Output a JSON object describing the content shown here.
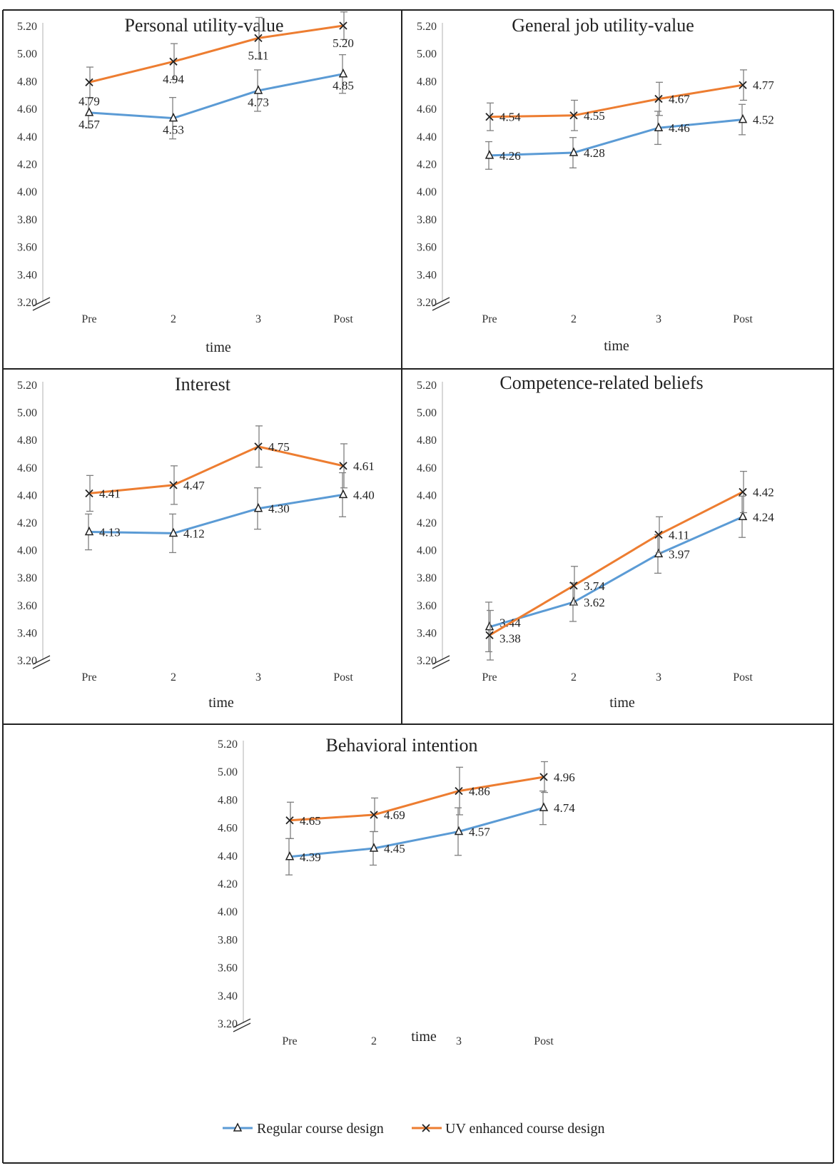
{
  "legend": {
    "regular": "Regular course design",
    "enhanced": "UV enhanced course design"
  },
  "colors": {
    "regular": "#5B9BD5",
    "enhanced": "#ED7D31",
    "errorbar": "#7f7f7f",
    "border": "#222222",
    "axis": "#bfbfbf"
  },
  "chart_data": [
    {
      "type": "line",
      "title": "Personal utility-value",
      "xlabel": "time",
      "categories": [
        "Pre",
        "2",
        "3",
        "Post"
      ],
      "yticks": [
        "3.20",
        "3.40",
        "3.60",
        "3.80",
        "4.00",
        "4.20",
        "4.40",
        "4.60",
        "4.80",
        "5.00",
        "5.20"
      ],
      "ylim": [
        3.2,
        5.2
      ],
      "series": [
        {
          "name": "Regular course design",
          "key": "regular",
          "values": [
            4.57,
            4.53,
            4.73,
            4.85
          ],
          "labels": [
            "4.57",
            "4.53",
            "4.73",
            "4.85"
          ],
          "error": [
            0.11,
            0.15,
            0.15,
            0.14
          ]
        },
        {
          "name": "UV enhanced course design",
          "key": "enhanced",
          "values": [
            4.79,
            4.94,
            5.11,
            5.2
          ],
          "labels": [
            "4.79",
            "4.94",
            "5.11",
            "5.20"
          ],
          "error": [
            0.11,
            0.13,
            0.15,
            0.1
          ]
        }
      ]
    },
    {
      "type": "line",
      "title": "General job utility-value",
      "xlabel": "time",
      "categories": [
        "Pre",
        "2",
        "3",
        "Post"
      ],
      "yticks": [
        "3.20",
        "3.40",
        "3.60",
        "3.80",
        "4.00",
        "4.20",
        "4.40",
        "4.60",
        "4.80",
        "5.00",
        "5.20"
      ],
      "ylim": [
        3.2,
        5.2
      ],
      "series": [
        {
          "name": "Regular course design",
          "key": "regular",
          "values": [
            4.26,
            4.28,
            4.46,
            4.52
          ],
          "labels": [
            "4.26",
            "4.28",
            "4.46",
            "4.52"
          ],
          "error": [
            0.1,
            0.11,
            0.12,
            0.11
          ]
        },
        {
          "name": "UV enhanced course design",
          "key": "enhanced",
          "values": [
            4.54,
            4.55,
            4.67,
            4.77
          ],
          "labels": [
            "4.54",
            "4.55",
            "4.67",
            "4.77"
          ],
          "error": [
            0.1,
            0.11,
            0.12,
            0.11
          ]
        }
      ]
    },
    {
      "type": "line",
      "title": "Interest",
      "xlabel": "time",
      "categories": [
        "Pre",
        "2",
        "3",
        "Post"
      ],
      "yticks": [
        "3.20",
        "3.40",
        "3.60",
        "3.80",
        "4.00",
        "4.20",
        "4.40",
        "4.60",
        "4.80",
        "5.00",
        "5.20"
      ],
      "ylim": [
        3.2,
        5.2
      ],
      "series": [
        {
          "name": "Regular course design",
          "key": "regular",
          "values": [
            4.13,
            4.12,
            4.3,
            4.4
          ],
          "labels": [
            "4.13",
            "4.12",
            "4.30",
            "4.40"
          ],
          "error": [
            0.13,
            0.14,
            0.15,
            0.16
          ]
        },
        {
          "name": "UV enhanced course design",
          "key": "enhanced",
          "values": [
            4.41,
            4.47,
            4.75,
            4.61
          ],
          "labels": [
            "4.41",
            "4.47",
            "4.75",
            "4.61"
          ],
          "error": [
            0.13,
            0.14,
            0.15,
            0.16
          ]
        }
      ]
    },
    {
      "type": "line",
      "title": "Competence-related beliefs",
      "xlabel": "time",
      "categories": [
        "Pre",
        "2",
        "3",
        "Post"
      ],
      "yticks": [
        "3.20",
        "3.40",
        "3.60",
        "3.80",
        "4.00",
        "4.20",
        "4.40",
        "4.60",
        "4.80",
        "5.00",
        "5.20"
      ],
      "ylim": [
        3.2,
        5.2
      ],
      "series": [
        {
          "name": "Regular course design",
          "key": "regular",
          "values": [
            3.44,
            3.62,
            3.97,
            4.24
          ],
          "labels": [
            "3.44",
            "3.62",
            "3.97",
            "4.24"
          ],
          "error": [
            0.18,
            0.14,
            0.14,
            0.15
          ]
        },
        {
          "name": "UV enhanced course design",
          "key": "enhanced",
          "values": [
            3.38,
            3.74,
            4.11,
            4.42
          ],
          "labels": [
            "3.38",
            "3.74",
            "4.11",
            "4.42"
          ],
          "error": [
            0.18,
            0.14,
            0.13,
            0.15
          ]
        }
      ]
    },
    {
      "type": "line",
      "title": "Behavioral intention",
      "xlabel": "time",
      "categories": [
        "Pre",
        "2",
        "3",
        "Post"
      ],
      "yticks": [
        "3.20",
        "3.40",
        "3.60",
        "3.80",
        "4.00",
        "4.20",
        "4.40",
        "4.60",
        "4.80",
        "5.00",
        "5.20"
      ],
      "ylim": [
        3.2,
        5.2
      ],
      "series": [
        {
          "name": "Regular course design",
          "key": "regular",
          "values": [
            4.39,
            4.45,
            4.57,
            4.74
          ],
          "labels": [
            "4.39",
            "4.45",
            "4.57",
            "4.74"
          ],
          "error": [
            0.13,
            0.12,
            0.17,
            0.12
          ]
        },
        {
          "name": "UV enhanced course design",
          "key": "enhanced",
          "values": [
            4.65,
            4.69,
            4.86,
            4.96
          ],
          "labels": [
            "4.65",
            "4.69",
            "4.86",
            "4.96"
          ],
          "error": [
            0.13,
            0.12,
            0.17,
            0.11
          ]
        }
      ]
    }
  ]
}
